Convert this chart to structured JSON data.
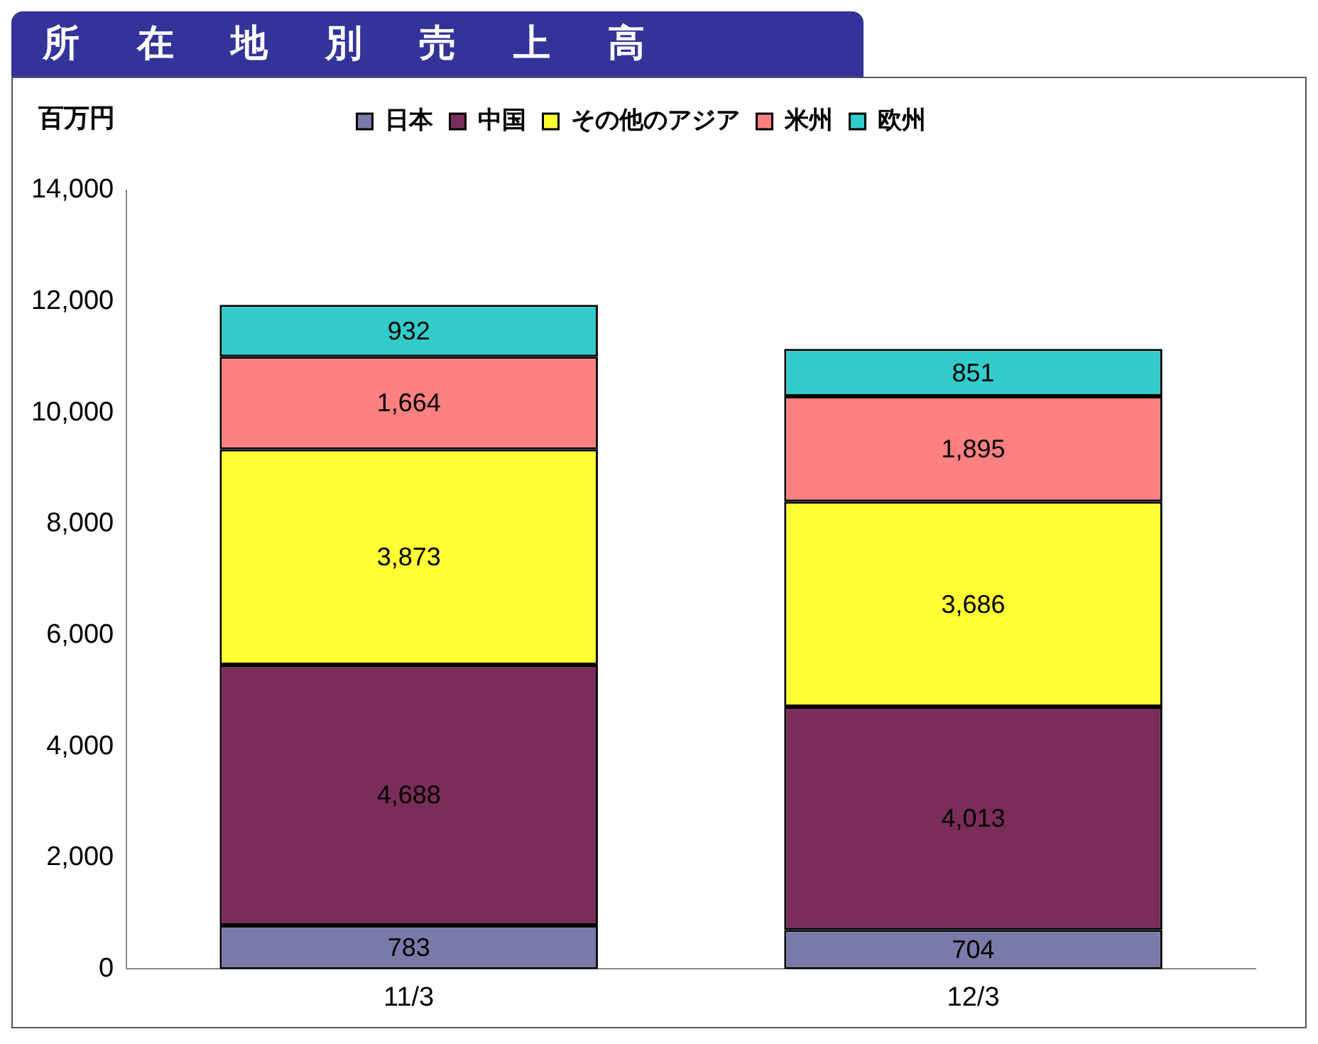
{
  "chart_data": {
    "type": "bar",
    "title": "所在地別売上高",
    "ylabel": "百万円",
    "categories": [
      "11/3",
      "12/3"
    ],
    "stacked": true,
    "legend": "top",
    "grid": false,
    "ylim": [
      0,
      14000
    ],
    "yticks": [
      {
        "value": 0,
        "label": "0"
      },
      {
        "value": 2000,
        "label": "2,000"
      },
      {
        "value": 4000,
        "label": "4,000"
      },
      {
        "value": 6000,
        "label": "6,000"
      },
      {
        "value": 8000,
        "label": "8,000"
      },
      {
        "value": 10000,
        "label": "10,000"
      },
      {
        "value": 12000,
        "label": "12,000"
      },
      {
        "value": 14000,
        "label": "14,000"
      }
    ],
    "series": [
      {
        "name": "日本",
        "color": "#7a7aa8",
        "values": [
          783,
          704
        ],
        "value_labels": [
          "783",
          "704"
        ]
      },
      {
        "name": "中国",
        "color": "#7b2d5a",
        "values": [
          4688,
          4013
        ],
        "value_labels": [
          "4,688",
          "4,013"
        ]
      },
      {
        "name": "その他のアジア",
        "color": "#ffff33",
        "values": [
          3873,
          3686
        ],
        "value_labels": [
          "3,873",
          "3,686"
        ]
      },
      {
        "name": "米州",
        "color": "#ff8080",
        "values": [
          1664,
          1895
        ],
        "value_labels": [
          "1,664",
          "1,895"
        ]
      },
      {
        "name": "欧州",
        "color": "#33cccc",
        "values": [
          932,
          851
        ],
        "value_labels": [
          "932",
          "851"
        ]
      }
    ]
  }
}
